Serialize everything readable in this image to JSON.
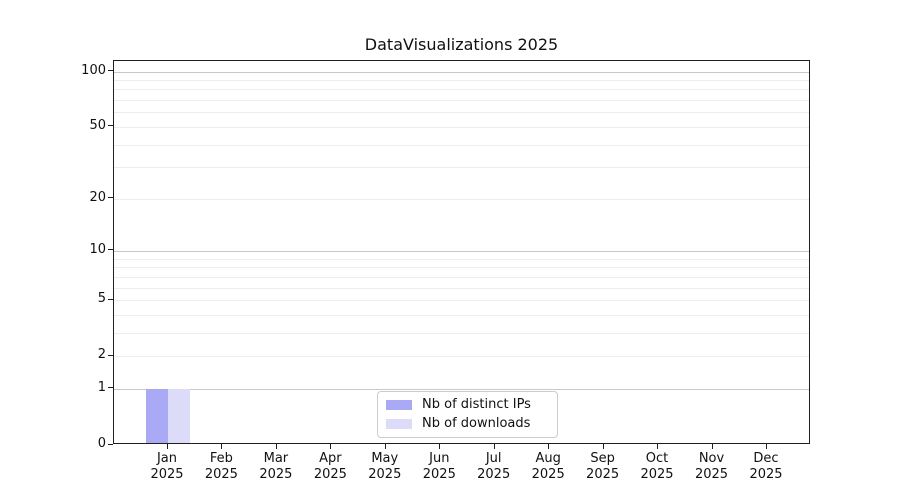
{
  "chart_data": {
    "type": "bar",
    "title": "DataVisualizations 2025",
    "x_tick_labels": [
      {
        "month": "Jan",
        "year": "2025"
      },
      {
        "month": "Feb",
        "year": "2025"
      },
      {
        "month": "Mar",
        "year": "2025"
      },
      {
        "month": "Apr",
        "year": "2025"
      },
      {
        "month": "May",
        "year": "2025"
      },
      {
        "month": "Jun",
        "year": "2025"
      },
      {
        "month": "Jul",
        "year": "2025"
      },
      {
        "month": "Aug",
        "year": "2025"
      },
      {
        "month": "Sep",
        "year": "2025"
      },
      {
        "month": "Oct",
        "year": "2025"
      },
      {
        "month": "Nov",
        "year": "2025"
      },
      {
        "month": "Dec",
        "year": "2025"
      }
    ],
    "series": [
      {
        "name": "Nb of distinct IPs",
        "color": "#a9a9f6",
        "values": [
          1,
          0,
          0,
          0,
          0,
          0,
          0,
          0,
          0,
          0,
          0,
          0
        ]
      },
      {
        "name": "Nb of downloads",
        "color": "#dcdcf8",
        "values": [
          1,
          0,
          0,
          0,
          0,
          0,
          0,
          0,
          0,
          0,
          0,
          0
        ]
      }
    ],
    "y_axis": {
      "scale": "log1p",
      "ticks": [
        100,
        50,
        20,
        10,
        5,
        2,
        1,
        0
      ],
      "major_grid": [
        1,
        10,
        100
      ],
      "minor_grid": [
        2,
        3,
        4,
        5,
        6,
        7,
        8,
        9,
        20,
        30,
        40,
        50,
        60,
        70,
        80,
        90
      ],
      "ylim": [
        0,
        114
      ]
    },
    "grid": "horizontal",
    "legend": {
      "position": "lower center"
    },
    "colors": {
      "bar_distinct_ips": "#a9a9f6",
      "bar_downloads": "#dcdcf8",
      "major_grid": "#c9c9c9",
      "minor_grid": "#ededed",
      "spine": "#1f1f1f",
      "text": "#111111",
      "legend_border": "#cccccc"
    }
  }
}
